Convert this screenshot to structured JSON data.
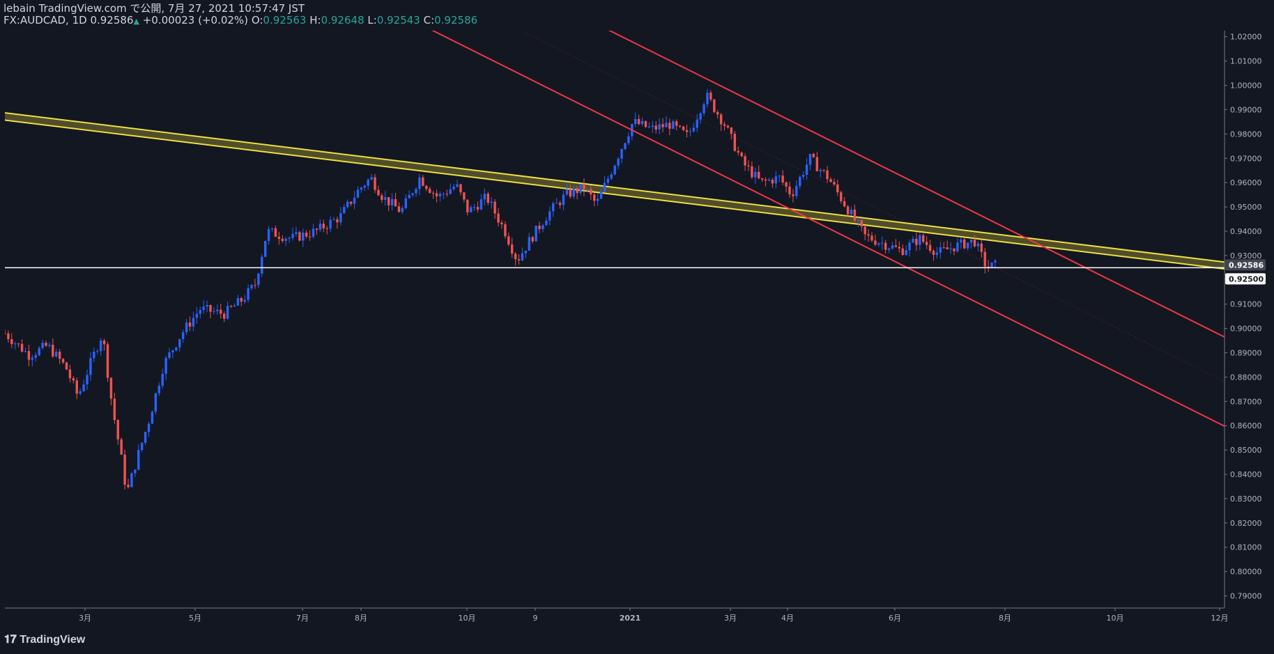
{
  "header": {
    "published": "lebain TradingView.com で公開, 7月 27, 2021 10:57:47 JST",
    "symbol": "FX:AUDCAD, 1D",
    "last": "0.92586",
    "change_arrow": "▲",
    "change": "+0.00023 (+0.02%)",
    "o_label": "O:",
    "o_value": "0.92563",
    "h_label": "H:",
    "h_value": "0.92648",
    "l_label": "L:",
    "l_value": "0.92543",
    "c_label": "C:",
    "c_value": "0.92586"
  },
  "footer": {
    "logo_icon": "tradingview-logo-icon",
    "brand": "TradingView"
  },
  "colors": {
    "background": "#131722",
    "up": "#2962ff",
    "down": "#ef5350",
    "trendline": "#f23645",
    "band": "#f0e040",
    "hline": "#ffffff"
  },
  "chart_data": {
    "type": "candlestick",
    "title": "FX:AUDCAD, 1D",
    "ylim": [
      0.785,
      1.0225
    ],
    "y_ticks": [
      "1.02000",
      "1.01000",
      "1.00000",
      "0.99000",
      "0.98000",
      "0.97000",
      "0.96000",
      "0.95000",
      "0.94000",
      "0.93000",
      "0.92000",
      "0.91000",
      "0.90000",
      "0.89000",
      "0.88000",
      "0.87000",
      "0.86000",
      "0.85000",
      "0.84000",
      "0.83000",
      "0.82000",
      "0.81000",
      "0.80000",
      "0.79000"
    ],
    "x_ticks": [
      "3月",
      "5月",
      "7月",
      "8月",
      "10月",
      "9",
      "2021",
      "3月",
      "4月",
      "6月",
      "8月",
      "10月",
      "12月"
    ],
    "price_tags": [
      {
        "label": "0.92586",
        "value": 0.92586,
        "style": "last"
      },
      {
        "label": "0.92500",
        "value": 0.925,
        "style": "line"
      }
    ],
    "horizontal_line": 0.925,
    "price_path": [
      [
        0.0,
        0.898
      ],
      [
        0.02,
        0.889
      ],
      [
        0.035,
        0.893
      ],
      [
        0.05,
        0.884
      ],
      [
        0.06,
        0.872
      ],
      [
        0.072,
        0.888
      ],
      [
        0.08,
        0.898
      ],
      [
        0.088,
        0.868
      ],
      [
        0.095,
        0.848
      ],
      [
        0.1,
        0.832
      ],
      [
        0.108,
        0.846
      ],
      [
        0.118,
        0.862
      ],
      [
        0.13,
        0.885
      ],
      [
        0.145,
        0.898
      ],
      [
        0.16,
        0.908
      ],
      [
        0.18,
        0.906
      ],
      [
        0.195,
        0.912
      ],
      [
        0.205,
        0.918
      ],
      [
        0.215,
        0.94
      ],
      [
        0.235,
        0.937
      ],
      [
        0.255,
        0.94
      ],
      [
        0.275,
        0.946
      ],
      [
        0.29,
        0.957
      ],
      [
        0.3,
        0.962
      ],
      [
        0.31,
        0.954
      ],
      [
        0.325,
        0.948
      ],
      [
        0.34,
        0.962
      ],
      [
        0.355,
        0.954
      ],
      [
        0.37,
        0.959
      ],
      [
        0.38,
        0.948
      ],
      [
        0.395,
        0.954
      ],
      [
        0.41,
        0.94
      ],
      [
        0.42,
        0.928
      ],
      [
        0.43,
        0.936
      ],
      [
        0.445,
        0.947
      ],
      [
        0.46,
        0.955
      ],
      [
        0.475,
        0.958
      ],
      [
        0.485,
        0.951
      ],
      [
        0.5,
        0.968
      ],
      [
        0.515,
        0.985
      ],
      [
        0.53,
        0.982
      ],
      [
        0.545,
        0.984
      ],
      [
        0.56,
        0.979
      ],
      [
        0.575,
        0.996
      ],
      [
        0.59,
        0.984
      ],
      [
        0.605,
        0.968
      ],
      [
        0.62,
        0.96
      ],
      [
        0.635,
        0.962
      ],
      [
        0.645,
        0.955
      ],
      [
        0.66,
        0.97
      ],
      [
        0.675,
        0.962
      ],
      [
        0.69,
        0.95
      ],
      [
        0.705,
        0.938
      ],
      [
        0.72,
        0.935
      ],
      [
        0.735,
        0.932
      ],
      [
        0.75,
        0.937
      ],
      [
        0.765,
        0.931
      ],
      [
        0.78,
        0.934
      ],
      [
        0.795,
        0.936
      ],
      [
        0.805,
        0.925
      ],
      [
        0.812,
        0.9259
      ]
    ],
    "price_path_axes": "x as fraction of the visible date span, y as price",
    "trend_lines": [
      {
        "name": "",
        "color": "#f23645",
        "points": [
          [
            0.345,
            1.024
          ],
          [
            1.0,
            0.8598
          ]
        ]
      },
      {
        "name": "",
        "color": "#f23645",
        "points": [
          [
            0.49,
            1.024
          ],
          [
            1.0,
            0.8965
          ]
        ]
      }
    ],
    "band": {
      "upper": [
        [
          0.0,
          0.9887
        ],
        [
          1.0,
          0.9273
        ]
      ],
      "lower": [
        [
          0.0,
          0.9857
        ],
        [
          1.0,
          0.9245
        ]
      ]
    }
  }
}
